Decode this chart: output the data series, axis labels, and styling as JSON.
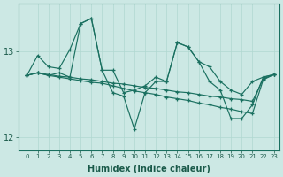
{
  "xlabel": "Humidex (Indice chaleur)",
  "bg_color": "#cce8e4",
  "grid_color": "#b0d8d0",
  "line_color": "#1a7060",
  "ylim_min": 11.85,
  "ylim_max": 13.55,
  "yticks": [
    12,
    13
  ],
  "xticks": [
    0,
    1,
    2,
    3,
    4,
    5,
    6,
    7,
    8,
    9,
    10,
    11,
    12,
    13,
    14,
    15,
    16,
    17,
    18,
    19,
    20,
    21,
    22,
    23
  ],
  "s1": [
    12.72,
    12.95,
    12.82,
    12.8,
    13.02,
    13.32,
    13.38,
    12.78,
    12.78,
    12.52,
    12.55,
    12.6,
    12.7,
    12.65,
    13.1,
    13.05,
    12.88,
    12.82,
    12.65,
    12.55,
    12.5,
    12.65,
    12.7,
    12.73
  ],
  "s2": [
    12.72,
    12.75,
    12.72,
    12.75,
    12.7,
    13.32,
    13.38,
    12.78,
    12.52,
    12.48,
    12.1,
    12.52,
    12.65,
    12.65,
    13.1,
    13.05,
    12.88,
    12.65,
    12.55,
    12.22,
    12.22,
    12.38,
    12.7,
    12.73
  ],
  "s3": [
    12.72,
    12.75,
    12.72,
    12.7,
    12.68,
    12.66,
    12.64,
    12.63,
    12.6,
    12.57,
    12.54,
    12.52,
    12.5,
    12.47,
    12.45,
    12.43,
    12.4,
    12.38,
    12.35,
    12.33,
    12.3,
    12.28,
    12.67,
    12.73
  ],
  "s4": [
    12.72,
    12.75,
    12.73,
    12.71,
    12.7,
    12.68,
    12.67,
    12.65,
    12.63,
    12.62,
    12.6,
    12.58,
    12.57,
    12.55,
    12.53,
    12.52,
    12.5,
    12.48,
    12.47,
    12.45,
    12.44,
    12.42,
    12.68,
    12.73
  ]
}
